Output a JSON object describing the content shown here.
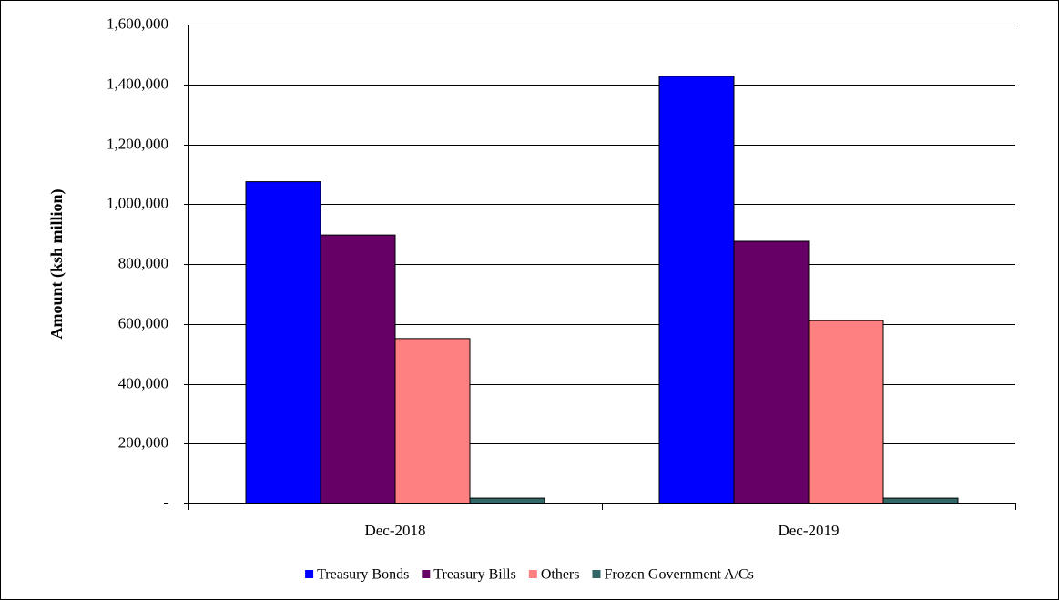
{
  "chart_data": {
    "type": "bar",
    "y_label": "Amount  (ksh million)",
    "categories": [
      "Dec-2018",
      "Dec-2019"
    ],
    "series": [
      {
        "name": "Treasury Bonds",
        "color": "#0000ff",
        "values": [
          1075000,
          1427000
        ]
      },
      {
        "name": "Treasury Bills",
        "color": "#660066",
        "values": [
          897000,
          876000
        ]
      },
      {
        "name": "Others",
        "color": "#ff8080",
        "values": [
          551000,
          611000
        ]
      },
      {
        "name": "Frozen Government A/Cs",
        "color": "#336666",
        "values": [
          18000,
          18000
        ]
      }
    ],
    "ylim": [
      0,
      1600000
    ],
    "yticks": [
      {
        "value": 0,
        "label": "-"
      },
      {
        "value": 200000,
        "label": "200,000"
      },
      {
        "value": 400000,
        "label": "400,000"
      },
      {
        "value": 600000,
        "label": "600,000"
      },
      {
        "value": 800000,
        "label": "800,000"
      },
      {
        "value": 1000000,
        "label": "1,000,000"
      },
      {
        "value": 1200000,
        "label": "1,200,000"
      },
      {
        "value": 1400000,
        "label": "1,400,000"
      },
      {
        "value": 1600000,
        "label": "1,600,000"
      }
    ],
    "grid": true,
    "legend": "bottom"
  }
}
